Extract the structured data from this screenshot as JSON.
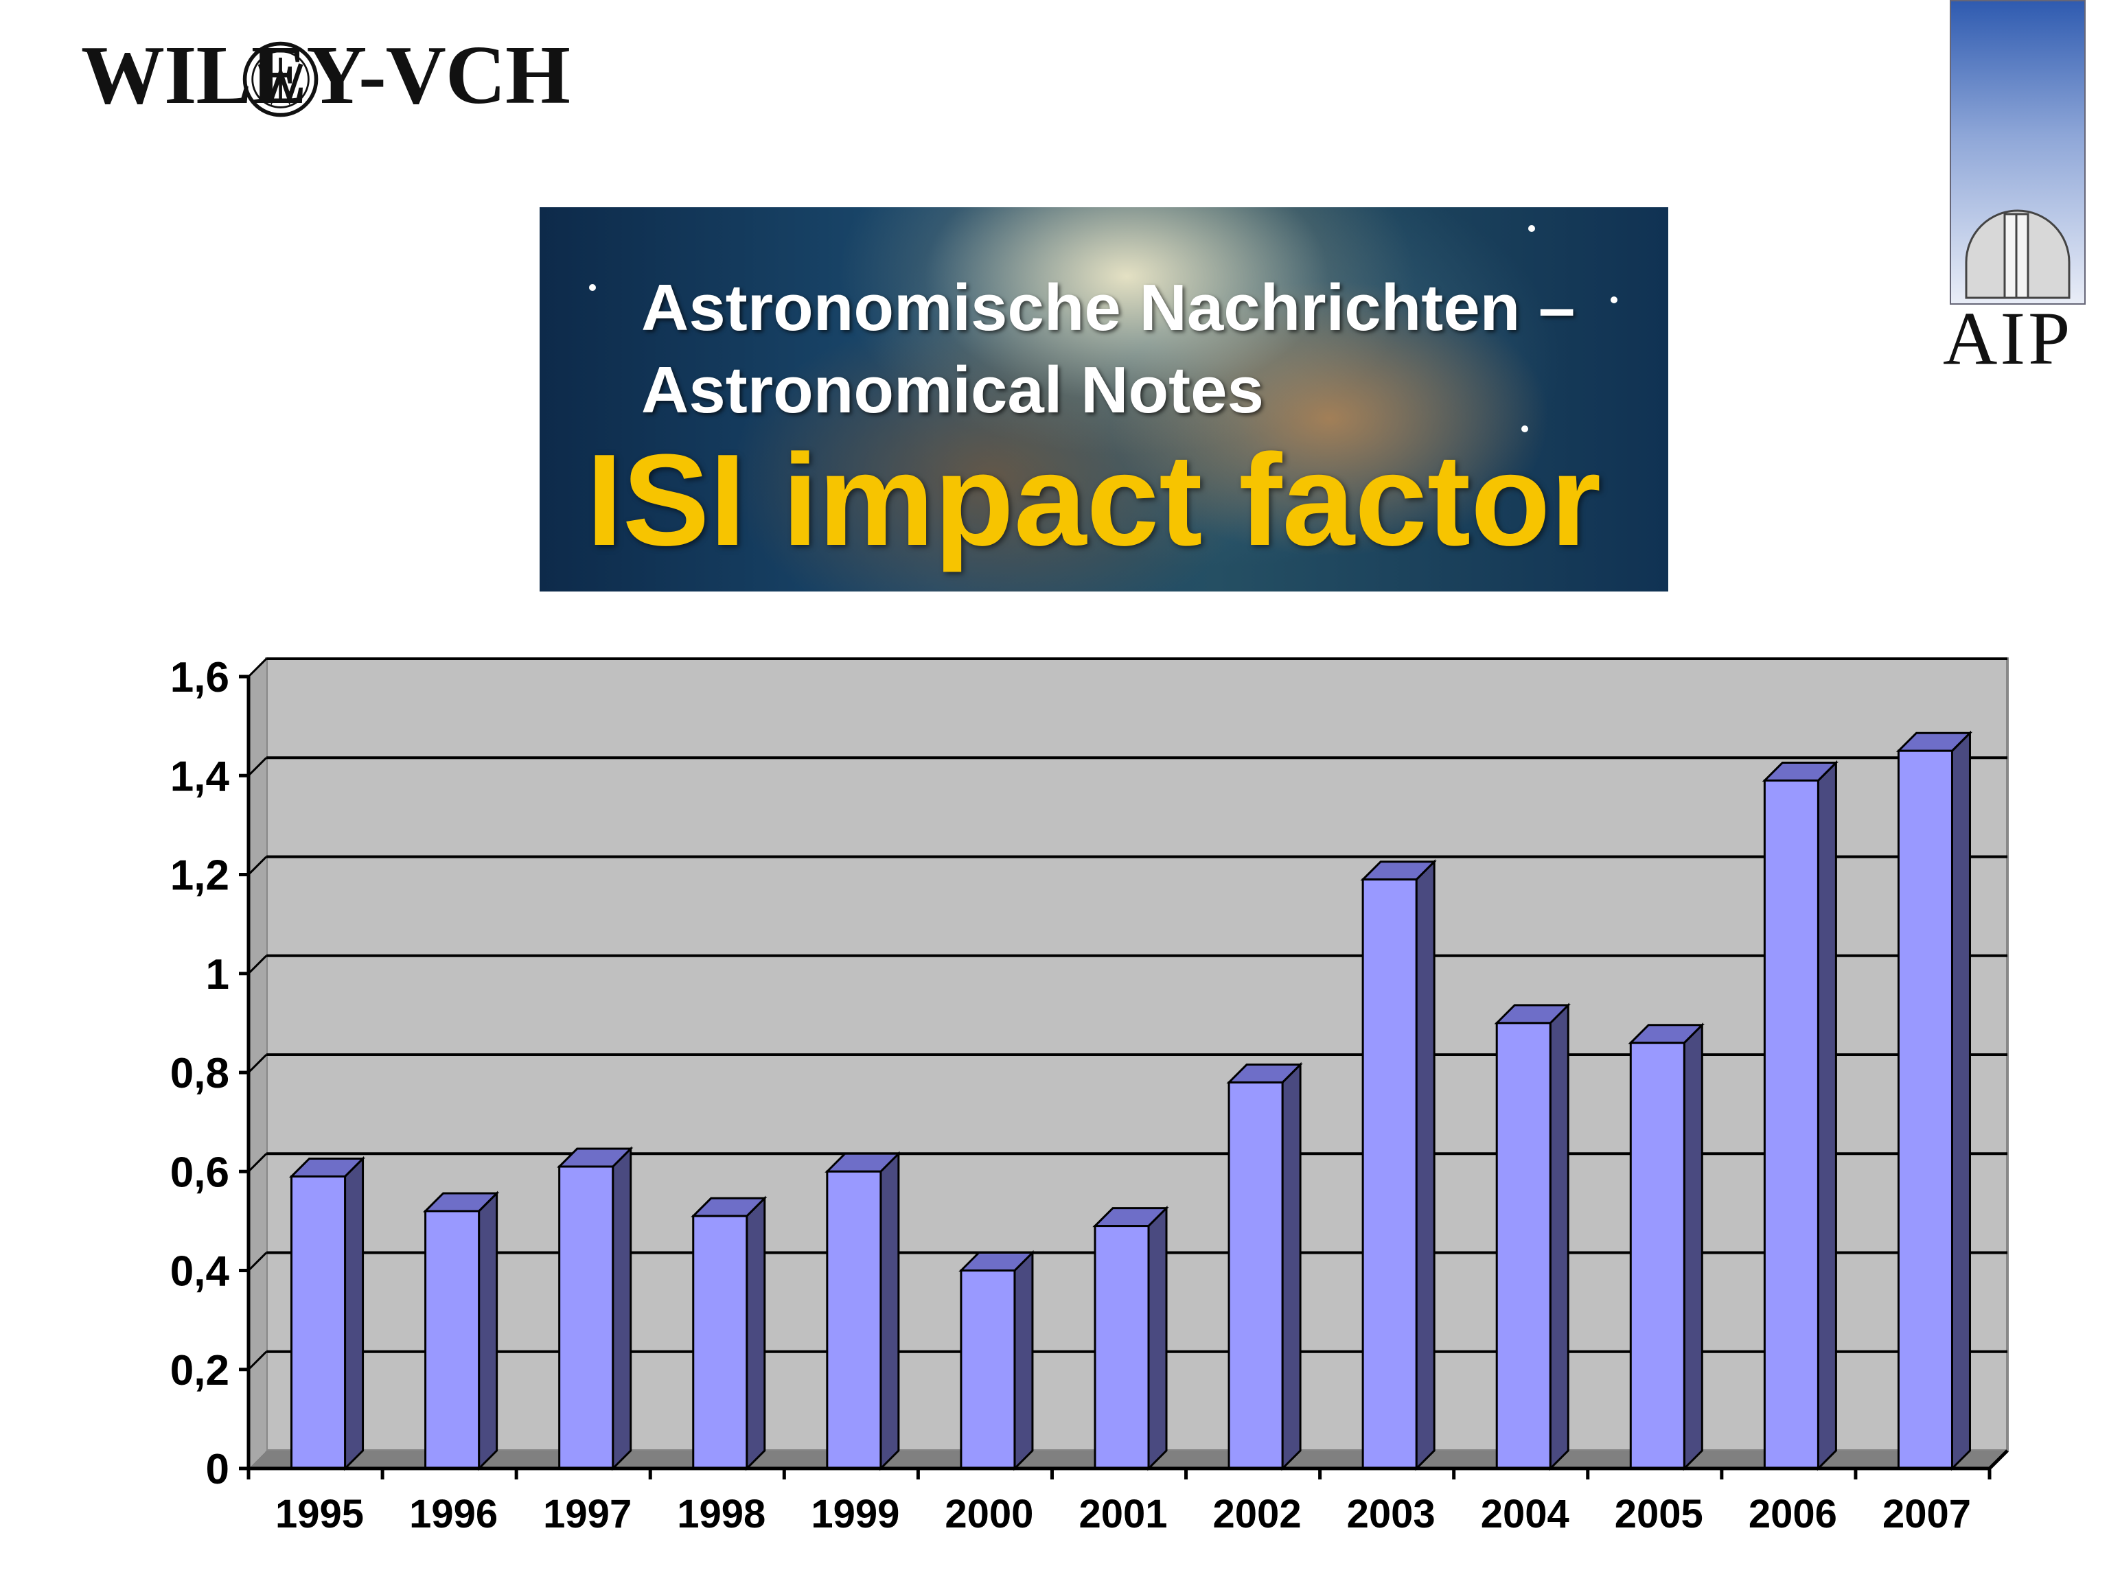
{
  "logos": {
    "publisher": "WILEY-VCH",
    "institute": "AIP"
  },
  "banner": {
    "line1": "Astronomische Nachrichten –",
    "line2": "Astronomical Notes",
    "title": "ISI impact factor",
    "title_color": "#f7c400"
  },
  "chart_data": {
    "type": "bar",
    "categories": [
      "1995",
      "1996",
      "1997",
      "1998",
      "1999",
      "2000",
      "2001",
      "2002",
      "2003",
      "2004",
      "2005",
      "2006",
      "2007"
    ],
    "values": [
      0.59,
      0.52,
      0.61,
      0.51,
      0.6,
      0.4,
      0.49,
      0.78,
      1.19,
      0.9,
      0.86,
      1.39,
      1.45
    ],
    "yticks": [
      "0",
      "0,2",
      "0,4",
      "0,6",
      "0,8",
      "1",
      "1,2",
      "1,4",
      "1,6"
    ],
    "ylim": [
      0,
      1.6
    ],
    "grid": true,
    "bar_color": "#9999ff",
    "bar_side_color": "#4a4a80",
    "plot_background": "#c0c0c0",
    "legend": "none"
  }
}
